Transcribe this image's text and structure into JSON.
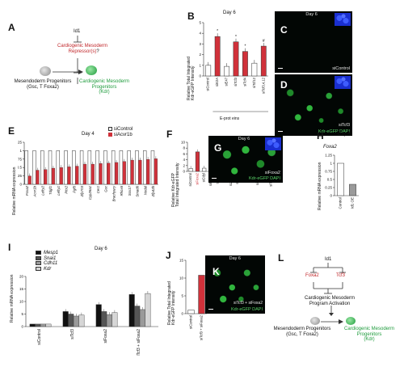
{
  "panels": {
    "A": {
      "letter": "A",
      "id1": "Id1",
      "repressor_line1": "Cardiogenic Mesoderm",
      "repressor_line2": "Repressor(s)",
      "question": "?",
      "meso_line1": "Mesendoderm Progenitors",
      "meso_line2": "(Gsc, T Foxa2)",
      "cardio_line1": "Cardiogenic Mesoderm",
      "cardio_line2": "Progenitors",
      "cardio_line3": "(Kdr)"
    },
    "B": {
      "letter": "B",
      "day": "Day 6",
      "ylabel_line1": "Relative Total Integrated",
      "ylabel_line2": "Kdr-eGFP Intensity",
      "group_label": "E-prot eins",
      "ylim": [
        0,
        5
      ],
      "ticks": [
        "0",
        "1",
        "2",
        "3",
        "4",
        "5"
      ],
      "categories": [
        "siControl",
        "siE2A",
        "siE47",
        "siTcf3",
        "siTcf4",
        "siTcf12",
        "siTcf3,4,12"
      ],
      "values": [
        1.0,
        3.7,
        0.9,
        3.2,
        2.3,
        1.2,
        2.8
      ],
      "red_flags": [
        false,
        true,
        false,
        true,
        true,
        false,
        true
      ],
      "stars": [
        "",
        "*",
        "",
        "*",
        "*",
        "",
        "#"
      ]
    },
    "C": {
      "letter": "C",
      "day": "Day 6",
      "label": "siControl"
    },
    "D": {
      "letter": "D",
      "label": "siTcf3",
      "channels": "Kdr-eGFP DAPI"
    },
    "E": {
      "letter": "E",
      "day": "Day 4",
      "legend_control": "siControl",
      "legend_acvr": "siAcvr1b",
      "ylabel": "Relative mRNA expression",
      "ylim": [
        0,
        1.25
      ],
      "ticks": [
        "0",
        "0.25",
        "0.5",
        "0.75",
        "1",
        "1.25"
      ],
      "genes": [
        "Foxa2",
        "Acvr1b",
        "Lefty2",
        "Tdgf1",
        "Lefty1",
        "Pitx2",
        "Fgf8",
        "Zfp703",
        "Cyp26a1",
        "Cer1",
        "Gsc",
        "Brachyury",
        "Rhox6",
        "Sox17",
        "Smad6",
        "Nodal",
        "Zfp42b"
      ],
      "control_values": [
        1,
        1,
        1,
        1,
        1,
        1,
        1,
        1,
        1,
        1,
        1,
        1,
        1,
        1,
        1,
        1,
        1
      ],
      "acvr_values": [
        0.25,
        0.42,
        0.44,
        0.48,
        0.5,
        0.52,
        0.54,
        0.6,
        0.6,
        0.62,
        0.63,
        0.65,
        0.68,
        0.72,
        0.72,
        0.74,
        0.76
      ]
    },
    "F": {
      "letter": "F",
      "ylabel_line1": "Relative Kdr-eGFP",
      "ylabel_line2": "Total Integrated Intensity",
      "ylim": [
        0,
        10
      ],
      "ticks": [
        "0",
        "2",
        "4",
        "6",
        "8",
        "10"
      ],
      "categories": [
        "siControl",
        "siFoxa2",
        "siCdyl",
        "siEomes",
        "siFezf1",
        "siHlx",
        "siZfp382",
        "siZfp59",
        "siSp8",
        "siSp5",
        "siNfe2l3",
        "siEbf3",
        "siTfcp2l1",
        "siTcf3"
      ],
      "values": [
        1.0,
        6.7,
        1.1,
        0.9,
        1.0,
        0.8,
        0.9,
        1.1,
        1.0,
        0.9,
        1.0,
        0.8,
        0.9,
        1.1
      ],
      "red_flags": [
        false,
        true,
        false,
        false,
        false,
        false,
        false,
        false,
        false,
        false,
        false,
        false,
        false,
        false
      ]
    },
    "G": {
      "letter": "G",
      "day": "Day 6",
      "label": "siFoxa2",
      "channels": "Kdr-eGFP DAPI"
    },
    "H": {
      "letter": "H",
      "day": "Day 4",
      "gene": "Foxa2",
      "ylabel": "Relative mRNA expression",
      "ylim": [
        0,
        1.25
      ],
      "ticks": [
        "0",
        "0.25",
        "0.5",
        "0.75",
        "1",
        "1.25"
      ],
      "categories": [
        "Control",
        "Id1 OE"
      ],
      "values": [
        1.0,
        0.35
      ]
    },
    "I": {
      "letter": "I",
      "day": "Day 6",
      "ylabel": "Relative mRNA expression",
      "ylim": [
        0,
        20
      ],
      "ticks": [
        "0",
        "5",
        "10",
        "15",
        "20"
      ],
      "legend": [
        "Mesp1",
        "Snai1",
        "Cdh11",
        "Kdr"
      ],
      "series_colors": [
        "#111111",
        "#555555",
        "#9a9a9a",
        "#d6d6d6"
      ],
      "groups": [
        "siControl",
        "siTcf3",
        "siFoxa2",
        "siTcf3 + siFoxa2"
      ],
      "values": [
        [
          1.0,
          1.0,
          1.0,
          1.0
        ],
        [
          6.0,
          5.0,
          4.2,
          4.6
        ],
        [
          8.8,
          6.0,
          4.8,
          5.6
        ],
        [
          12.8,
          8.2,
          6.8,
          13.2
        ]
      ]
    },
    "J": {
      "letter": "J",
      "ylabel_line1": "Relative Total Integrated",
      "ylabel_line2": "Kdr-eGFP Intensity",
      "ylim": [
        0,
        15
      ],
      "ticks": [
        "0",
        "5",
        "10",
        "15"
      ],
      "categories": [
        "siControl",
        "siTcf3 + siFoxa2"
      ],
      "values": [
        1.0,
        10.8
      ],
      "red_flags": [
        false,
        true
      ]
    },
    "K": {
      "letter": "K",
      "day": "Day 6",
      "label": "siTcf3 + siFoxa2",
      "channels": "Kdr-eGFP DAPI"
    },
    "L": {
      "letter": "L",
      "id1": "Id1",
      "foxa2": "Foxa2",
      "tcf3": "Tcf3",
      "activation_line1": "Cardiogenic Mesoderm",
      "activation_line2": "Program Activation",
      "meso_line1": "Mesendoderm Progenitors",
      "meso_line2": "(Gsc, T Foxa2)",
      "cardio_line1": "Cardiogenic Mesoderm",
      "cardio_line2": "Progenitors",
      "cardio_line3": "(Kdr)"
    }
  },
  "colors": {
    "red_bar": "#d0313a",
    "dark_red_text": "#c0262a",
    "green": "#1e9b3c",
    "micro_bg": "#020604"
  }
}
